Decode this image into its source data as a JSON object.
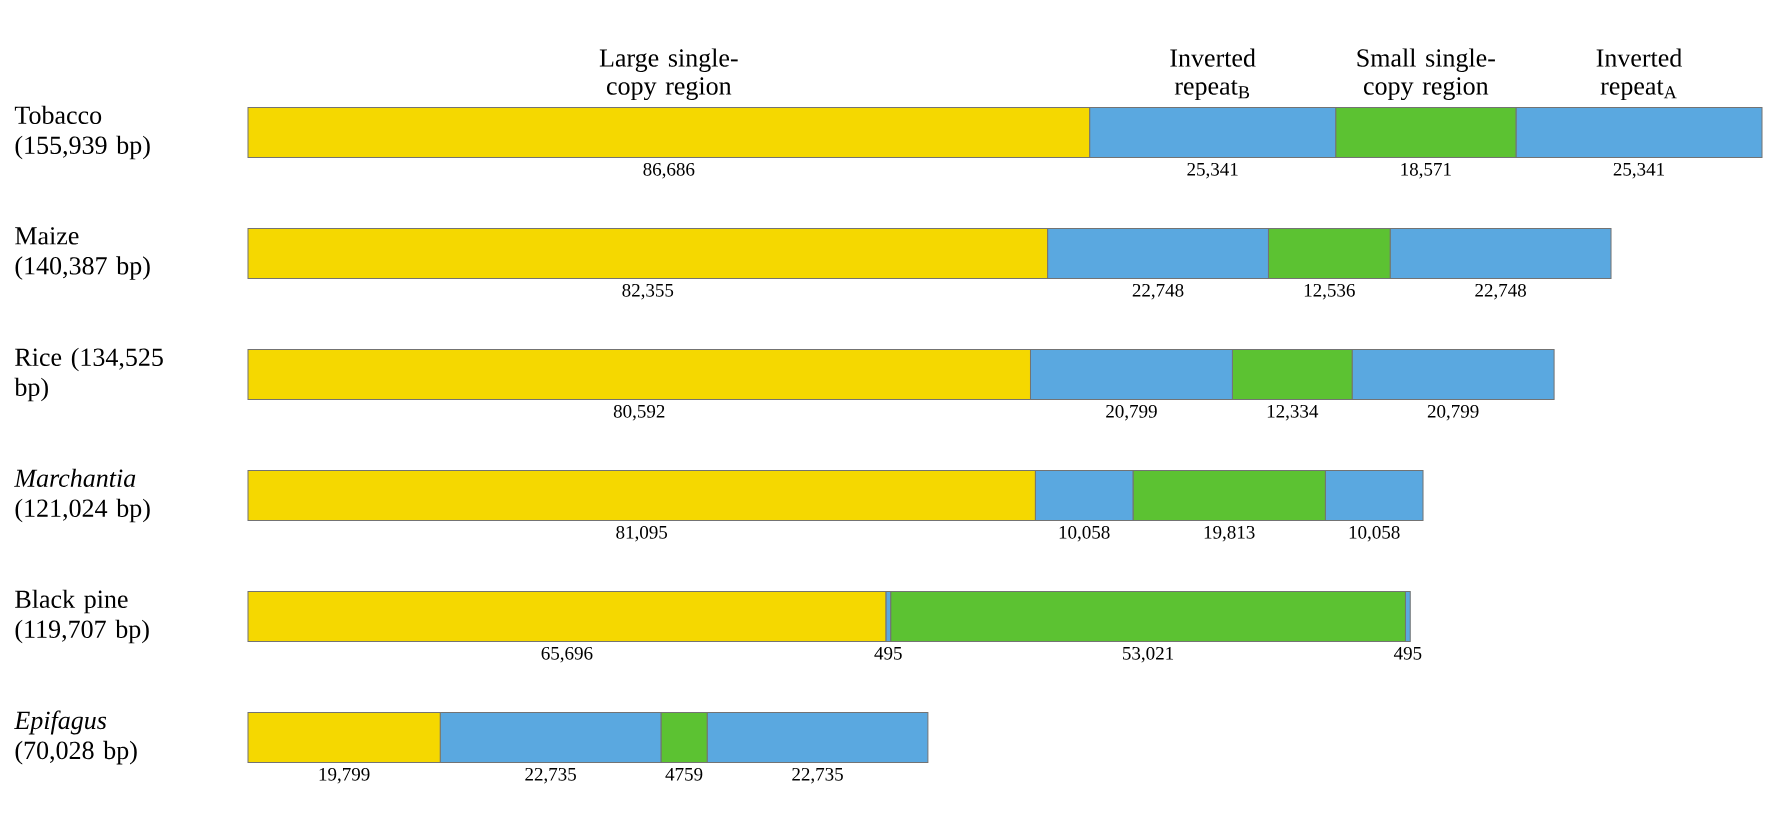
{
  "chart_data": {
    "type": "bar",
    "orientation": "horizontal",
    "stacked": true,
    "categories": [
      "Tobacco (155,939 bp)",
      "Maize (140,387 bp)",
      "Rice (134,525 bp)",
      "*Marchantia* (121,024 bp)",
      "Black pine (119,707 bp)",
      "*Epifagus* (70,028 bp)"
    ],
    "series": [
      {
        "name": "Large single-copy region",
        "color": "#f5d800",
        "values": [
          86686,
          82355,
          80592,
          81095,
          65696,
          19799
        ],
        "value_labels": [
          "86,686",
          "82,355",
          "80,592",
          "81,095",
          "65,696",
          "19,799"
        ]
      },
      {
        "name": "Inverted repeat$_{B}$",
        "color": "#5aa8e0",
        "values": [
          25341,
          22748,
          20799,
          10058,
          495,
          22735
        ],
        "value_labels": [
          "25,341",
          "22,748",
          "20,799",
          "10,058",
          "495",
          "22,735"
        ]
      },
      {
        "name": "Small single-copy region",
        "color": "#5cc232",
        "values": [
          18571,
          12536,
          12334,
          19813,
          53021,
          4759
        ],
        "value_labels": [
          "18,571",
          "12,536",
          "12,334",
          "19,813",
          "53,021",
          "4759"
        ]
      },
      {
        "name": "Inverted repeat$_{A}$",
        "color": "#5aa8e0",
        "values": [
          25341,
          22748,
          20799,
          10058,
          495,
          22735
        ],
        "value_labels": [
          "25,341",
          "22,748",
          "20,799",
          "10,058",
          "495",
          "22,735"
        ]
      }
    ]
  }
}
